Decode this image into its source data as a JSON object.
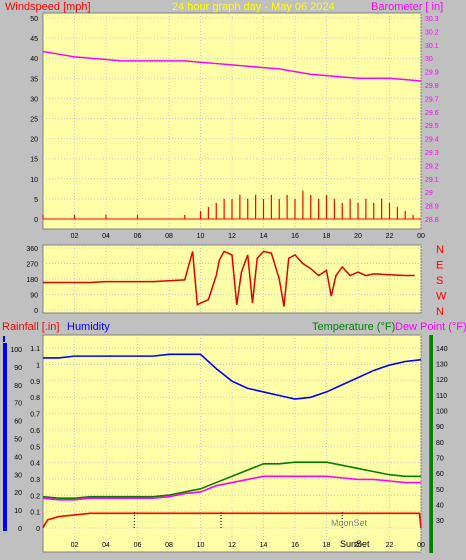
{
  "header": {
    "left_label": "Windspeed [mph]",
    "center_label": "24 hour graph day - May 06 2024",
    "right_label": "Barometer [ in]"
  },
  "colors": {
    "panel_bg": "#ffffa8",
    "window_bg": "#c0c0c0",
    "wind": "#ff0000",
    "gust": "#0000ff",
    "barometer": "#ff00ff",
    "rain": "#ff0000",
    "humidity": "#0000ff",
    "temperature": "#008000",
    "dewpoint": "#ff00ff",
    "header_center": "#ffff00"
  },
  "chart_data": [
    {
      "type": "line",
      "x_ticks": [
        "02",
        "04",
        "06",
        "08",
        "10",
        "12",
        "14",
        "16",
        "18",
        "20",
        "22",
        "00"
      ],
      "y_left_ticks": [
        "0",
        "5",
        "10",
        "15",
        "20",
        "25",
        "30",
        "35",
        "40",
        "45",
        "50"
      ],
      "y_right_ticks": [
        "28.8",
        "28.9",
        "29",
        "29.1",
        "29.2",
        "29.3",
        "29.4",
        "29.5",
        "29.6",
        "29.7",
        "29.8",
        "29.9",
        "30",
        "30.1",
        "30.2",
        "30.3"
      ],
      "ylim_left": [
        0,
        50
      ],
      "ylim_right": [
        28.8,
        30.3
      ],
      "series": [
        {
          "name": "Windspeed [mph]",
          "axis": "left",
          "hours": [
            0,
            1,
            2,
            3,
            4,
            5,
            6,
            7,
            8,
            9,
            10,
            10.5,
            11,
            11.5,
            12,
            12.5,
            13,
            13.5,
            14,
            14.5,
            15,
            15.5,
            16,
            16.5,
            17,
            17.5,
            18,
            18.5,
            19,
            19.5,
            20,
            20.5,
            21,
            21.5,
            22,
            22.5,
            23,
            23.5
          ],
          "values": [
            1,
            0,
            1,
            0,
            1,
            0,
            1,
            0,
            0,
            1,
            2,
            3,
            4,
            5,
            5,
            6,
            5,
            6,
            5,
            6,
            5,
            6,
            5,
            7,
            6,
            5,
            6,
            5,
            4,
            5,
            4,
            5,
            4,
            5,
            4,
            3,
            2,
            1
          ]
        },
        {
          "name": "Barometer [ in]",
          "axis": "right",
          "hours": [
            0,
            1,
            2,
            3,
            4,
            5,
            6,
            7,
            8,
            9,
            10,
            11,
            12,
            13,
            14,
            15,
            16,
            17,
            18,
            19,
            20,
            21,
            22,
            23,
            24
          ],
          "values": [
            30.05,
            30.03,
            30.01,
            30.0,
            29.99,
            29.98,
            29.98,
            29.98,
            29.98,
            29.98,
            29.97,
            29.96,
            29.95,
            29.94,
            29.93,
            29.92,
            29.9,
            29.88,
            29.87,
            29.86,
            29.85,
            29.85,
            29.85,
            29.84,
            29.83
          ]
        }
      ]
    },
    {
      "type": "line",
      "y_ticks": [
        "0",
        "90",
        "180",
        "270",
        "360"
      ],
      "direction_labels": [
        "N",
        "W",
        "S",
        "E",
        "N"
      ],
      "ylim": [
        0,
        360
      ],
      "series": [
        {
          "name": "Wind direction",
          "hours": [
            0,
            1,
            2,
            3,
            4,
            5,
            6,
            7,
            8,
            9,
            9.5,
            9.8,
            10,
            10.5,
            11,
            11.2,
            11.5,
            12,
            12.3,
            12.6,
            13,
            13.3,
            13.6,
            14,
            14.5,
            15,
            15.3,
            15.6,
            16,
            16.5,
            17,
            17.5,
            18,
            18.3,
            18.6,
            19,
            19.5,
            20,
            20.5,
            21,
            22,
            23,
            23.6
          ],
          "values": [
            160,
            160,
            160,
            160,
            165,
            165,
            165,
            165,
            170,
            175,
            340,
            30,
            40,
            60,
            200,
            290,
            340,
            320,
            30,
            220,
            320,
            40,
            300,
            340,
            330,
            180,
            20,
            300,
            320,
            270,
            240,
            200,
            230,
            80,
            200,
            250,
            200,
            220,
            200,
            210,
            205,
            200,
            200
          ]
        }
      ]
    },
    {
      "type": "line",
      "x_ticks": [
        "02",
        "04",
        "06",
        "08",
        "10",
        "12",
        "14",
        "16",
        "18",
        "20",
        "22",
        "00"
      ],
      "y_rain_ticks": [
        "0",
        "0.1",
        "0.2",
        "0.3",
        "0.4",
        "0.5",
        "0.6",
        "0.7",
        "0.8",
        "0.9",
        "1",
        "1.1"
      ],
      "y_humidity_ticks": [
        "0",
        "10",
        "20",
        "30",
        "40",
        "50",
        "60",
        "70",
        "80",
        "90",
        "100"
      ],
      "y_temp_ticks": [
        "30",
        "40",
        "50",
        "60",
        "70",
        "80",
        "90",
        "100",
        "110",
        "120",
        "130",
        "140"
      ],
      "ylim_rain": [
        0,
        1.15
      ],
      "ylim_humidity": [
        0,
        105
      ],
      "ylim_temp": [
        25,
        145
      ],
      "series": [
        {
          "name": "Rainfall [.in]",
          "axis": "rain",
          "hours": [
            0,
            0.1,
            0.3,
            1,
            2,
            3,
            4,
            5,
            6,
            7,
            8,
            9,
            10,
            11,
            12,
            13,
            14,
            15,
            16,
            17,
            18,
            19,
            20,
            21,
            22,
            23,
            23.9,
            24
          ],
          "values": [
            0,
            0.02,
            0.05,
            0.07,
            0.08,
            0.09,
            0.09,
            0.09,
            0.09,
            0.09,
            0.09,
            0.09,
            0.09,
            0.09,
            0.09,
            0.09,
            0.09,
            0.09,
            0.09,
            0.09,
            0.09,
            0.09,
            0.09,
            0.09,
            0.09,
            0.09,
            0.09,
            0
          ]
        },
        {
          "name": "Humidity",
          "axis": "humidity",
          "hours": [
            0,
            1,
            2,
            3,
            4,
            5,
            6,
            7,
            8,
            9,
            10,
            11,
            12,
            13,
            14,
            15,
            16,
            17,
            18,
            19,
            20,
            21,
            22,
            23,
            24
          ],
          "values": [
            95,
            95,
            96,
            96,
            96,
            96,
            96,
            96,
            97,
            97,
            97,
            89,
            82,
            78,
            76,
            74,
            72,
            73,
            76,
            80,
            84,
            88,
            91,
            93,
            94
          ]
        },
        {
          "name": "Temperature (°F)",
          "axis": "temp",
          "hours": [
            0,
            1,
            2,
            3,
            4,
            5,
            6,
            7,
            8,
            9,
            10,
            11,
            12,
            13,
            14,
            15,
            16,
            17,
            18,
            19,
            20,
            21,
            22,
            23,
            24
          ],
          "values": [
            45,
            44,
            44,
            45,
            45,
            45,
            45,
            45,
            46,
            48,
            50,
            54,
            58,
            62,
            66,
            66,
            67,
            67,
            67,
            65,
            63,
            61,
            59,
            58,
            58
          ]
        },
        {
          "name": "Dew Point (°F)",
          "axis": "temp",
          "hours": [
            0,
            1,
            2,
            3,
            4,
            5,
            6,
            7,
            8,
            9,
            10,
            11,
            12,
            13,
            14,
            15,
            16,
            17,
            18,
            19,
            20,
            21,
            22,
            23,
            24
          ],
          "values": [
            44,
            43,
            43,
            44,
            44,
            44,
            44,
            44,
            45,
            47,
            48,
            52,
            54,
            56,
            58,
            58,
            58,
            58,
            58,
            57,
            56,
            56,
            55,
            54,
            54
          ]
        }
      ],
      "annotations": [
        "Moon Set",
        "Sun Set"
      ]
    }
  ],
  "bottom_labels": {
    "rain_label": "Rainfall [.in]",
    "humidity_label": "Humidity",
    "temp_label": "Temperature (°F)",
    "dew_label": "Dew Point (°F)",
    "moonset_label": "MoonSet",
    "sunset_label": "SunSet"
  }
}
